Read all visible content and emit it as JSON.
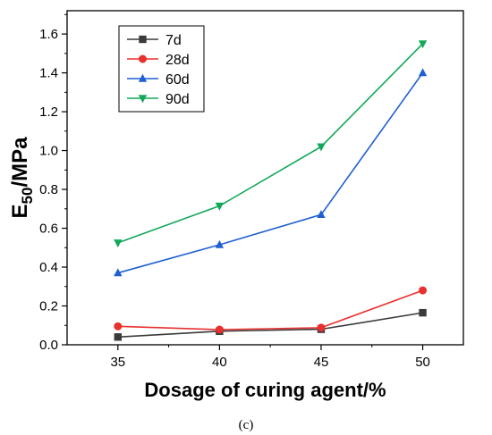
{
  "chart_data": {
    "type": "line",
    "xlabel": "Dosage of curing agent/%",
    "ylabel_main": "E",
    "ylabel_sub": "50",
    "ylabel_rest": "/MPa",
    "caption": "(c)",
    "x": [
      35,
      40,
      45,
      50
    ],
    "xlim": [
      32.5,
      52
    ],
    "ylim": [
      0,
      1.72
    ],
    "xticks": [
      "35",
      "40",
      "45",
      "50"
    ],
    "yticks": [
      "0.0",
      "0.2",
      "0.4",
      "0.6",
      "0.8",
      "1.0",
      "1.2",
      "1.4",
      "1.6"
    ],
    "grid": false,
    "legend_position": "top-left",
    "series": [
      {
        "name": "7d",
        "color": "#3a3a3a",
        "marker": "square",
        "values": [
          0.04,
          0.07,
          0.08,
          0.165
        ]
      },
      {
        "name": "28d",
        "color": "#e8302e",
        "marker": "circle",
        "values": [
          0.095,
          0.078,
          0.088,
          0.28
        ]
      },
      {
        "name": "60d",
        "color": "#1f5fd1",
        "marker": "triangle-up",
        "values": [
          0.37,
          0.515,
          0.67,
          1.4
        ]
      },
      {
        "name": "90d",
        "color": "#12a85a",
        "marker": "triangle-down",
        "values": [
          0.525,
          0.715,
          1.02,
          1.55
        ]
      }
    ]
  }
}
